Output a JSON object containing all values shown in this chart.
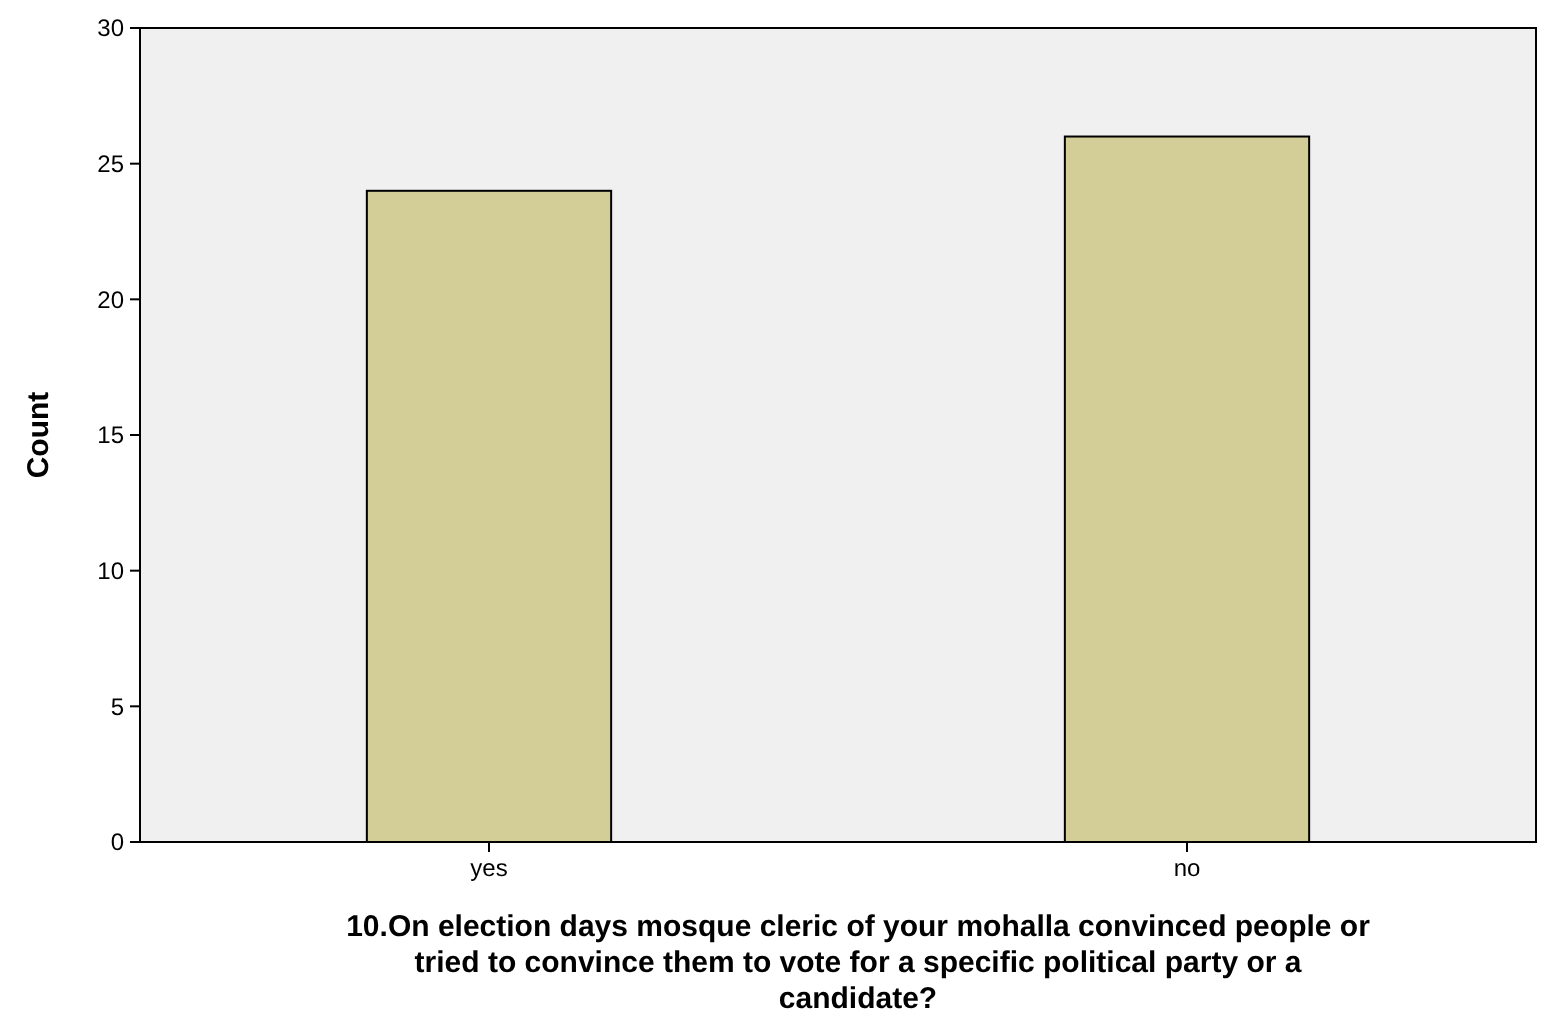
{
  "chart_data": {
    "type": "bar",
    "xlabel": "10.On election days mosque cleric of your mohalla convinced people or tried to convince them to vote for a specific political party or a candidate?",
    "ylabel": "Count",
    "categories": [
      "yes",
      "no"
    ],
    "values": [
      24,
      26
    ],
    "color": "#d3ce97",
    "ylim": [
      0,
      30
    ],
    "yticks": [
      0,
      5,
      10,
      15,
      20,
      25,
      30
    ],
    "grid": false
  }
}
